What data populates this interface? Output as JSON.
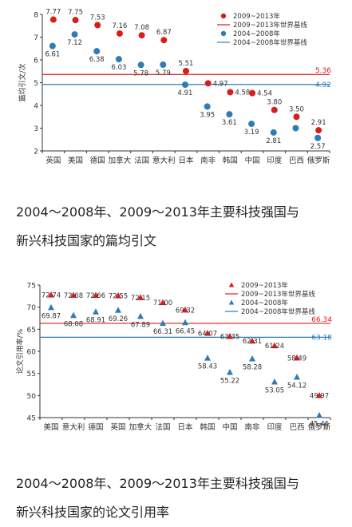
{
  "colors": {
    "series_2009": "#d91c1c",
    "series_2004": "#2f7bb4",
    "baseline_2009": "#d91c1c",
    "baseline_2004": "#2f7bb4",
    "axis": "#333333"
  },
  "chart_data": [
    {
      "type": "scatter",
      "ylabel": "篇均引文/次",
      "ylim": [
        2,
        8
      ],
      "yticks": [
        2,
        3,
        4,
        5,
        6,
        7,
        8
      ],
      "marker": "circle",
      "categories": [
        "英国",
        "美国",
        "德国",
        "加拿大",
        "法国",
        "意大利",
        "日本",
        "南非",
        "韩国",
        "中国",
        "印度",
        "巴西",
        "俄罗斯"
      ],
      "series": [
        {
          "name": "2009~2013年",
          "values": [
            7.77,
            7.75,
            7.53,
            7.16,
            7.08,
            6.87,
            5.51,
            4.97,
            4.58,
            4.54,
            3.8,
            3.5,
            2.91
          ],
          "labels": [
            "7.77",
            "7.75",
            "7.53",
            "7.16",
            "7.08",
            "6.87",
            "5.51",
            "4.97",
            "4.58",
            "4.54",
            "3.80",
            "3.50",
            "2.91"
          ]
        },
        {
          "name": "2004~2008年",
          "values": [
            6.61,
            7.12,
            6.38,
            6.03,
            5.78,
            5.79,
            4.91,
            3.95,
            3.61,
            3.19,
            2.81,
            3.0,
            2.57
          ],
          "labels": [
            "6.61",
            "7.12",
            "6.38",
            "6.03",
            "5.78",
            "5.79",
            "4.91",
            "3.95",
            "3.61",
            "3.19",
            "2.81",
            "",
            "2.57"
          ]
        }
      ],
      "baselines": [
        {
          "name": "2009~2013年世界基线",
          "value": 5.36,
          "label": "5.36"
        },
        {
          "name": "2004~2008年世界基线",
          "value": 4.92,
          "label": "4.92"
        }
      ],
      "legend": "top-right"
    },
    {
      "type": "scatter",
      "ylabel": "论文引用率/%",
      "ylim": [
        45,
        75
      ],
      "yticks": [
        45,
        50,
        55,
        60,
        65,
        70,
        75
      ],
      "marker": "triangle",
      "categories": [
        "美国",
        "意大利",
        "德国",
        "英国",
        "加拿大",
        "法国",
        "日本",
        "韩国",
        "中国",
        "南非",
        "印度",
        "巴西",
        "俄罗斯"
      ],
      "series": [
        {
          "name": "2009~2013年",
          "values": [
            72.74,
            72.68,
            72.66,
            72.55,
            72.15,
            71.0,
            69.32,
            64.07,
            63.35,
            62.31,
            61.24,
            58.49,
            49.97
          ],
          "labels": [
            "72.74",
            "72.68",
            "72.66",
            "72.55",
            "72.15",
            "71.00",
            "69.32",
            "64.07",
            "63.35",
            "62.31",
            "61.24",
            "58.49",
            "49.97"
          ]
        },
        {
          "name": "2004~2008年",
          "values": [
            69.87,
            68.08,
            68.91,
            69.26,
            67.89,
            66.31,
            66.45,
            58.43,
            55.22,
            58.28,
            53.05,
            54.12,
            45.46
          ],
          "labels": [
            "69.87",
            "68.08",
            "68.91",
            "69.26",
            "67.89",
            "66.31",
            "66.45",
            "58.43",
            "55.22",
            "58.28",
            "53.05",
            "54.12",
            "45.46"
          ]
        }
      ],
      "baselines": [
        {
          "name": "2009~2013年世界基线",
          "value": 66.34,
          "label": "66.34"
        },
        {
          "name": "2004~2008年世界基线",
          "value": 63.18,
          "label": "63.18"
        }
      ],
      "legend": "top-right"
    }
  ],
  "captions": [
    {
      "line1": "2004～2008年、2009～2013年主要科技强国与",
      "line2": "新兴科技国家的篇均引文"
    },
    {
      "line1": "2004～2008年、2009～2013年主要科技强国与",
      "line2": "新兴科技国家的论文引用率"
    }
  ]
}
